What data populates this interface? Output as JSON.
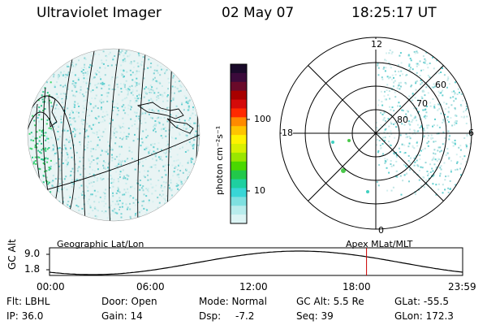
{
  "header": {
    "title": "Ultraviolet Imager",
    "date": "02 May 07",
    "time": "18:25:17 UT"
  },
  "colorbar": {
    "unit_label": "photon cm⁻²s⁻¹",
    "ticks": [
      "100",
      "10"
    ],
    "colors": [
      "#1a0a2a",
      "#3b0a3b",
      "#6a0a2a",
      "#a80000",
      "#d40a0a",
      "#ff2a00",
      "#ff8a00",
      "#ffc400",
      "#fff200",
      "#d8f000",
      "#9ae600",
      "#4ad800",
      "#22c84a",
      "#1ed0a0",
      "#38d6d6",
      "#7ee0e0",
      "#b8ecec",
      "#dcf4f4"
    ]
  },
  "polar_plot": {
    "mlt_labels": [
      "12",
      "18",
      "6",
      "0"
    ],
    "lat_labels": [
      "60",
      "70",
      "80"
    ]
  },
  "map_labels": {
    "left": "Geographic Lat/Lon",
    "right": "Apex  MLat/MLT"
  },
  "timeline": {
    "ylabel": "GC Alt",
    "y_ticks": [
      "9.0",
      "1.8"
    ],
    "x_ticks": [
      "00:00",
      "06:00",
      "12:00",
      "18:00",
      "23:59"
    ],
    "marker_time": "18:25",
    "marker_color": "#cc0000"
  },
  "info": {
    "flt": "Flt: LBHL",
    "ip": "IP: 36.0",
    "door": "Door: Open",
    "gain": "Gain: 14",
    "mode": "Mode: Normal",
    "dsp_label": "Dsp:",
    "dsp_value": "-7.2",
    "gc_alt": "GC Alt: 5.5 Re",
    "seq": "Seq: 39",
    "glat": "GLat: -55.5",
    "glon": "GLon: 172.3"
  }
}
